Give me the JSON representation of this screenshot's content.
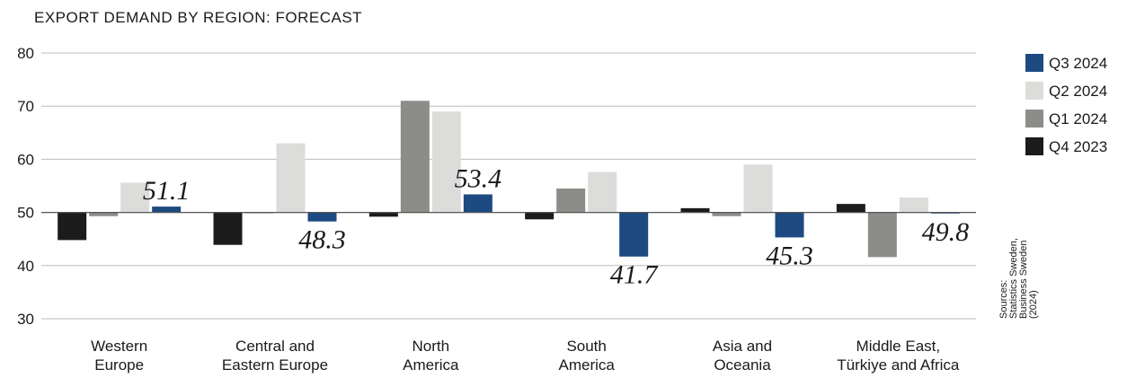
{
  "chart_data": {
    "type": "bar",
    "title": "EXPORT DEMAND BY REGION: FORECAST",
    "categories": [
      [
        "Western",
        "Europe"
      ],
      [
        "Central and",
        "Eastern Europe"
      ],
      [
        "North",
        "America"
      ],
      [
        "South",
        "America"
      ],
      [
        "Asia and",
        "Oceania"
      ],
      [
        "Middle East,",
        "Türkiye and Africa"
      ]
    ],
    "baseline": 50,
    "ylim": [
      30,
      80
    ],
    "yticks": [
      30,
      40,
      50,
      60,
      70,
      80
    ],
    "grid": true,
    "legend_position": "right",
    "series": [
      {
        "name": "Q4 2023",
        "color": "#1c1c1c",
        "values": [
          44.8,
          43.9,
          49.2,
          48.7,
          50.8,
          51.6
        ]
      },
      {
        "name": "Q1 2024",
        "color": "#8c8c89",
        "values": [
          49.3,
          50.0,
          71.0,
          54.5,
          49.3,
          41.6
        ]
      },
      {
        "name": "Q2 2024",
        "color": "#dcdcda",
        "values": [
          55.6,
          63.0,
          69.0,
          57.6,
          59.0,
          52.8
        ]
      },
      {
        "name": "Q3 2024",
        "color": "#1d4a80",
        "values": [
          51.1,
          48.3,
          53.4,
          41.7,
          45.3,
          49.8
        ]
      }
    ],
    "data_labels": [
      "51.1",
      "48.3",
      "53.4",
      "41.7",
      "45.3",
      "49.8"
    ],
    "legend_order": [
      "Q3 2024",
      "Q2 2024",
      "Q1 2024",
      "Q4 2023"
    ],
    "source": [
      "Sources:",
      "Statistics Sweden,",
      "Business Sweden",
      "(2024)"
    ]
  }
}
